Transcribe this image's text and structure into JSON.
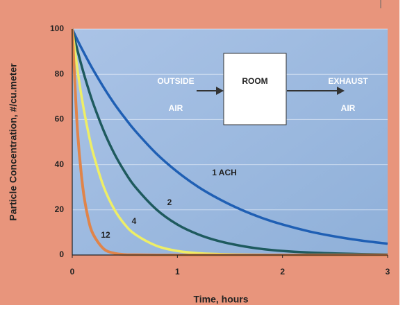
{
  "chart_data": {
    "type": "line",
    "xlabel": "Time, hours",
    "ylabel": "Particle Concentration, #/cu.meter",
    "x": [
      0,
      0.05,
      0.1,
      0.15,
      0.2,
      0.3,
      0.4,
      0.5,
      0.6,
      0.8,
      1.0,
      1.2,
      1.4,
      1.6,
      1.8,
      2.0,
      2.25,
      2.5,
      2.75,
      3.0
    ],
    "series": [
      {
        "name": "1 ACH",
        "color": "#1f5fb4",
        "values": [
          100,
          95.1,
          90.5,
          86.1,
          81.9,
          74.1,
          67.0,
          60.7,
          54.9,
          44.9,
          36.8,
          30.1,
          24.7,
          20.2,
          16.5,
          13.5,
          10.5,
          8.2,
          6.4,
          5.0
        ]
      },
      {
        "name": "2",
        "color": "#1e5a5e",
        "values": [
          100,
          90.5,
          81.9,
          74.1,
          67.0,
          54.9,
          44.9,
          36.8,
          30.1,
          20.2,
          13.5,
          9.1,
          6.1,
          4.1,
          2.7,
          1.8,
          1.1,
          0.7,
          0.4,
          0.2
        ]
      },
      {
        "name": "4",
        "color": "#eeee66",
        "values": [
          100,
          81.9,
          67.0,
          54.9,
          44.9,
          30.1,
          20.2,
          13.5,
          9.1,
          4.1,
          1.8,
          0.8,
          0.4,
          0.2,
          0.1,
          0,
          0,
          0,
          0,
          0
        ]
      },
      {
        "name": "12",
        "color": "#e0844a",
        "values": [
          100,
          54.9,
          30.1,
          16.5,
          9.1,
          2.7,
          0.8,
          0.2,
          0.1,
          0,
          0,
          0,
          0,
          0,
          0,
          0,
          0,
          0,
          0,
          0
        ]
      }
    ],
    "xlim": [
      0,
      3
    ],
    "xticks": [
      0,
      1,
      2,
      3
    ],
    "ylim": [
      0,
      100
    ],
    "yticks": [
      0,
      20,
      40,
      60,
      80,
      100
    ],
    "grid": true,
    "diagram": {
      "inlet": [
        "OUTSIDE",
        "AIR"
      ],
      "box": "ROOM",
      "outlet": [
        "EXHAUST",
        "AIR"
      ]
    }
  }
}
